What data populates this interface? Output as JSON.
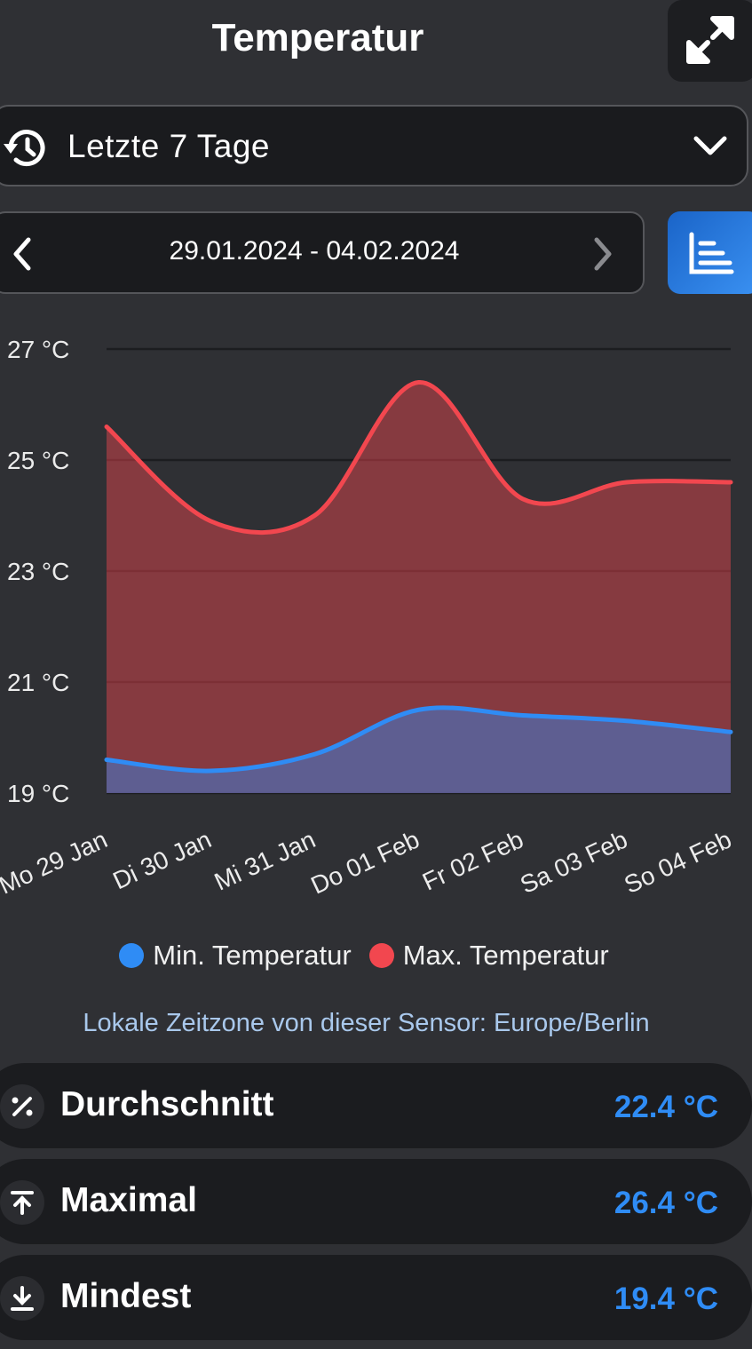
{
  "header": {
    "title": "Temperatur"
  },
  "range_selector": {
    "label": "Letzte 7 Tage"
  },
  "date_range": {
    "label": "29.01.2024 - 04.02.2024"
  },
  "chart_data": {
    "type": "line",
    "categories": [
      "Mo 29 Jan",
      "Di 30 Jan",
      "Mi 31 Jan",
      "Do 01 Feb",
      "Fr 02 Feb",
      "Sa 03 Feb",
      "So 04 Feb"
    ],
    "series": [
      {
        "name": "Min. Temperatur",
        "color": "#2f8cf5",
        "values": [
          19.6,
          19.4,
          19.7,
          20.5,
          20.4,
          20.3,
          20.1
        ]
      },
      {
        "name": "Max. Temperatur",
        "color": "#f2474f",
        "values": [
          25.6,
          23.9,
          24.0,
          26.4,
          24.3,
          24.6,
          24.6
        ]
      }
    ],
    "ylim": [
      19,
      27
    ],
    "yticks": [
      {
        "value": 19,
        "label": "19 °C"
      },
      {
        "value": 21,
        "label": "21 °C"
      },
      {
        "value": 23,
        "label": "23 °C"
      },
      {
        "value": 25,
        "label": "25 °C"
      },
      {
        "value": 27,
        "label": "27 °C"
      }
    ],
    "grid": true,
    "area": true
  },
  "timezone_note": "Lokale Zeitzone von dieser Sensor: Europe/Berlin",
  "stats": [
    {
      "label": "Durchschnitt",
      "value": "22.4 °C"
    },
    {
      "label": "Maximal",
      "value": "26.4 °C"
    },
    {
      "label": "Mindest",
      "value": "19.4 °C"
    }
  ]
}
